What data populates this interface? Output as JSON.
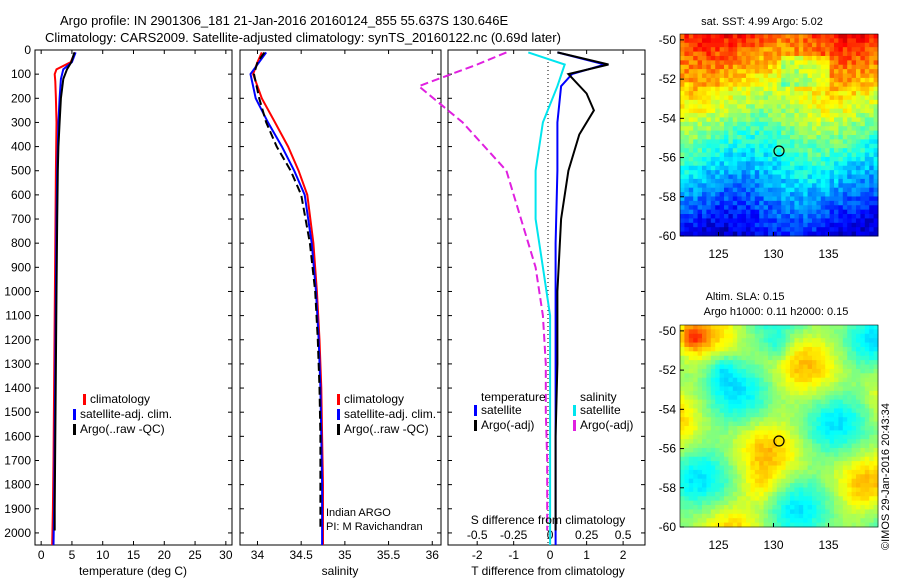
{
  "header": {
    "title_line1": "Argo profile: IN 2901306_181 21-Jan-2016 20160124_855 55.637S 130.646E",
    "title_line2": "Climatology: CARS2009. Satellite-adjusted climatology: synTS_20160122.nc (0.69d later)"
  },
  "colors": {
    "climatology": "#ff0000",
    "satellite": "#0000ff",
    "argo": "#000000",
    "salinity_satellite": "#00e5ee",
    "salinity_argo": "#e020e0"
  },
  "depth_ticks": [
    0,
    100,
    200,
    300,
    400,
    500,
    600,
    700,
    800,
    900,
    1000,
    1100,
    1200,
    1300,
    1400,
    1500,
    1600,
    1700,
    1800,
    1900,
    2000
  ],
  "chart_data": [
    {
      "type": "line",
      "id": "temperature",
      "xlabel": "temperature (deg C)",
      "xlim": [
        -1,
        31
      ],
      "xticks": [
        0,
        5,
        10,
        15,
        20,
        25,
        30
      ],
      "ylim": [
        2050,
        0
      ],
      "legend": [
        "climatology",
        "satellite-adj. clim.",
        "Argo(..raw -QC)"
      ],
      "series": [
        {
          "name": "climatology",
          "color": "#ff0000",
          "x": [
            5.5,
            4.8,
            2.5,
            2.2,
            2.3,
            2.4,
            2.5,
            2.4,
            2.3,
            2.2,
            2.1,
            2.0,
            1.9,
            1.8
          ],
          "y": [
            10,
            50,
            80,
            100,
            130,
            200,
            300,
            500,
            800,
            1100,
            1400,
            1700,
            1900,
            2050
          ]
        },
        {
          "name": "satellite-adj. clim.",
          "color": "#0000ff",
          "x": [
            5.6,
            5.0,
            3.6,
            3.2,
            3.0,
            2.8,
            2.7,
            2.6,
            2.5,
            2.4,
            2.3,
            2.2,
            2.1,
            2.0
          ],
          "y": [
            10,
            50,
            80,
            120,
            200,
            300,
            400,
            500,
            700,
            1000,
            1300,
            1600,
            1900,
            2050
          ]
        },
        {
          "name": "Argo(..raw -QC)",
          "color": "#000000",
          "x": [
            5.4,
            4.9,
            4.2,
            3.6,
            3.2,
            3.0,
            2.8,
            2.7,
            2.6,
            2.5,
            2.4,
            2.3,
            2.2,
            2.2
          ],
          "y": [
            10,
            50,
            80,
            120,
            200,
            300,
            400,
            500,
            700,
            1000,
            1300,
            1600,
            1900,
            1990
          ]
        }
      ]
    },
    {
      "type": "line",
      "id": "salinity",
      "xlabel": "salinity",
      "xlim": [
        33.8,
        36.1
      ],
      "xticks": [
        34,
        34.5,
        35,
        35.5,
        36
      ],
      "xtick_labels": [
        "34",
        "34.5",
        "35",
        "35.5",
        "36"
      ],
      "ylim": [
        2050,
        0
      ],
      "legend": [
        "climatology",
        "satellite-adj. clim.",
        "Argo(..raw -QC)"
      ],
      "annotation": [
        "Indian ARGO",
        "PI: M Ravichandran"
      ],
      "series": [
        {
          "name": "climatology",
          "color": "#ff0000",
          "x": [
            34.05,
            34.0,
            33.95,
            34.05,
            34.2,
            34.35,
            34.47,
            34.57,
            34.64,
            34.68,
            34.71,
            34.73,
            34.74,
            34.75,
            34.75
          ],
          "y": [
            10,
            50,
            100,
            200,
            300,
            400,
            500,
            600,
            800,
            1000,
            1200,
            1400,
            1600,
            1800,
            2050
          ]
        },
        {
          "name": "satellite-adj. clim.",
          "color": "#0000ff",
          "x": [
            34.1,
            34.02,
            33.92,
            33.98,
            34.12,
            34.28,
            34.42,
            34.54,
            34.62,
            34.67,
            34.7,
            34.72,
            34.73,
            34.74,
            34.74
          ],
          "y": [
            10,
            50,
            100,
            200,
            300,
            400,
            500,
            600,
            800,
            1000,
            1200,
            1400,
            1600,
            1800,
            2050
          ]
        },
        {
          "name": "Argo(..raw -QC)",
          "color": "#000000",
          "x": [
            34.08,
            34.0,
            33.96,
            34.02,
            34.1,
            34.22,
            34.38,
            34.5,
            34.6,
            34.66,
            34.69,
            34.71,
            34.72,
            34.72,
            34.72
          ],
          "y": [
            10,
            50,
            100,
            200,
            300,
            400,
            500,
            600,
            800,
            1000,
            1200,
            1400,
            1600,
            1800,
            1990
          ]
        }
      ]
    },
    {
      "type": "line",
      "id": "differences",
      "xlabel": "T difference from climatology",
      "xlabel_top": "S difference from climatology",
      "xlim": [
        -2.8,
        2.6
      ],
      "xticks": [
        -2,
        -1,
        0,
        1,
        2
      ],
      "xticks_s": [
        -0.5,
        -0.25,
        0,
        0.25,
        0.5
      ],
      "xticks_s_labels": [
        "-0.5",
        "-0.25",
        "0",
        "0.25",
        "0.5"
      ],
      "ylim": [
        2050,
        0
      ],
      "legend_temperature_title": "temperature",
      "legend_salinity_title": "salinity",
      "legend": [
        "satellite",
        "Argo(-adj)",
        "satellite",
        "Argo(-adj)"
      ],
      "series": [
        {
          "name": "T satellite",
          "color": "#0000ff",
          "x": [
            0.2,
            1.5,
            0.6,
            0.3,
            0.2,
            0.2,
            0.15,
            0.15,
            0.15,
            0.15,
            0.15,
            0.15,
            0.15
          ],
          "y": [
            10,
            60,
            100,
            150,
            300,
            500,
            800,
            1100,
            1400,
            1700,
            1900,
            2000,
            2050
          ]
        },
        {
          "name": "T Argo(-adj)",
          "color": "#000000",
          "x": [
            0.2,
            1.6,
            0.5,
            1.0,
            1.2,
            0.8,
            0.5,
            0.3,
            0.2,
            0.2,
            0.15,
            0.15,
            0.15
          ],
          "y": [
            10,
            60,
            100,
            180,
            250,
            350,
            500,
            700,
            1000,
            1300,
            1600,
            1900,
            1990
          ]
        },
        {
          "name": "S satellite",
          "color": "#00e5ee",
          "x": [
            -0.15,
            0.1,
            0.05,
            -0.05,
            -0.1,
            -0.1,
            -0.05,
            0.0,
            0.0,
            0.0,
            0.0,
            0.0,
            0.0
          ],
          "y": [
            10,
            60,
            150,
            300,
            500,
            700,
            900,
            1100,
            1300,
            1500,
            1700,
            1900,
            2050
          ]
        },
        {
          "name": "S Argo(-adj)",
          "color": "#e020e0",
          "x": [
            -0.3,
            -0.5,
            -0.9,
            -0.6,
            -0.3,
            -0.2,
            -0.1,
            -0.05,
            -0.03,
            -0.03,
            -0.02,
            -0.02,
            -0.02
          ],
          "y": [
            10,
            60,
            150,
            300,
            500,
            700,
            900,
            1100,
            1300,
            1500,
            1700,
            1900,
            1990
          ]
        }
      ]
    },
    {
      "type": "heatmap",
      "id": "sst_map",
      "title": "sat. SST: 4.99 Argo: 5.02",
      "xticks": [
        125,
        130,
        135
      ],
      "yticks": [
        -50,
        -52,
        -54,
        -56,
        -58,
        -60
      ],
      "xlim": [
        121.5,
        139.5
      ],
      "ylim": [
        -60,
        -49.7
      ],
      "marker": {
        "lon": 130.646,
        "lat": -55.637
      }
    },
    {
      "type": "heatmap",
      "id": "sla_map",
      "title": "Altim. SLA: 0.15",
      "subtitle": "Argo h1000: 0.11 h2000: 0.15",
      "xticks": [
        125,
        130,
        135
      ],
      "yticks": [
        -50,
        -52,
        -54,
        -56,
        -58,
        -60
      ],
      "xlim": [
        121.5,
        139.5
      ],
      "ylim": [
        -60,
        -49.7
      ],
      "marker": {
        "lon": 130.646,
        "lat": -55.637
      }
    }
  ],
  "footer": {
    "credit": "©IMOS 29-Jan-2016 20:43:34"
  }
}
